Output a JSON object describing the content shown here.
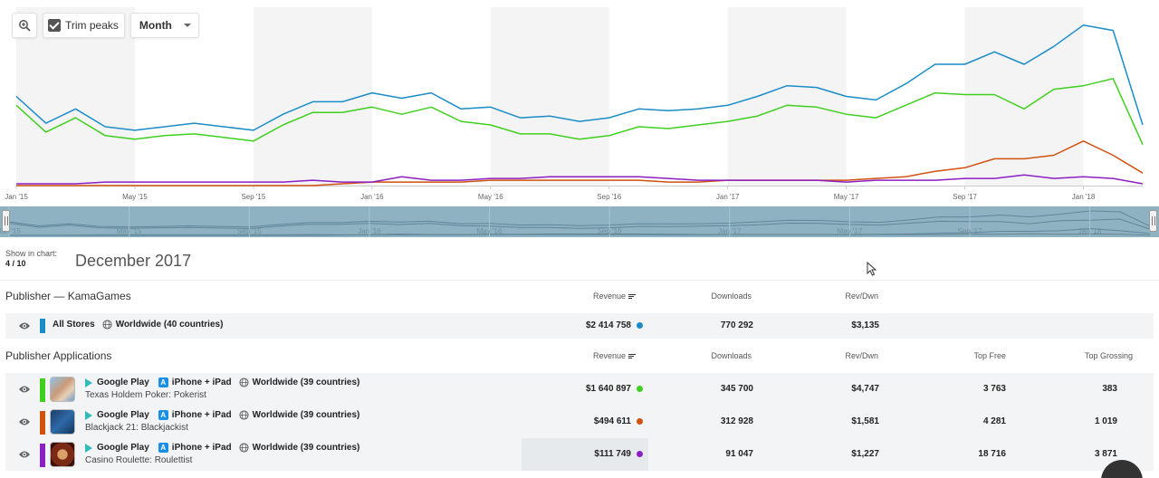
{
  "toolbar": {
    "zoom_icon": "zoom-in-icon",
    "trim_label": "Trim peaks",
    "trim_checked": true,
    "period_select": "Month"
  },
  "chart_data": {
    "type": "line",
    "x": [
      "Jan '15",
      "Feb '15",
      "Mar '15",
      "Apr '15",
      "May '15",
      "Jun '15",
      "Jul '15",
      "Aug '15",
      "Sep '15",
      "Oct '15",
      "Nov '15",
      "Dec '15",
      "Jan '16",
      "Feb '16",
      "Mar '16",
      "Apr '16",
      "May '16",
      "Jun '16",
      "Jul '16",
      "Aug '16",
      "Sep '16",
      "Oct '16",
      "Nov '16",
      "Dec '16",
      "Jan '17",
      "Feb '17",
      "Mar '17",
      "Apr '17",
      "May '17",
      "Jun '17",
      "Jul '17",
      "Aug '17",
      "Sep '17",
      "Oct '17",
      "Nov '17",
      "Dec '17",
      "Jan '18",
      "Feb '18",
      "Mar '18"
    ],
    "x_tick_labels": [
      "Jan '15",
      "May '15",
      "Sep '15",
      "Jan '16",
      "May '16",
      "Sep '16",
      "Jan '17",
      "May '17",
      "Sep '17",
      "Jan '18"
    ],
    "navigator_tick_labels": [
      "Jan '15",
      "May '15",
      "Sep '15",
      "Jan '16",
      "May '16",
      "Sep '16",
      "Jan '17",
      "May '17",
      "Sep '17",
      "Jan '18"
    ],
    "ylim": [
      0,
      100
    ],
    "shaded_bands": [
      [
        "Jan '15",
        "May '15"
      ],
      [
        "Sep '15",
        "Jan '16"
      ],
      [
        "May '16",
        "Sep '16"
      ],
      [
        "Jan '17",
        "May '17"
      ],
      [
        "Sep '17",
        "Jan '18"
      ]
    ],
    "series": [
      {
        "color": "#1a8cc8",
        "values": [
          50,
          35,
          43,
          33,
          31,
          33,
          35,
          33,
          31,
          40,
          47,
          47,
          52,
          49,
          52,
          43,
          44,
          38,
          39,
          36,
          38,
          43,
          42,
          43,
          45,
          50,
          56,
          55,
          50,
          48,
          57,
          68,
          68,
          75,
          68,
          78,
          90,
          87,
          34
        ]
      },
      {
        "color": "#3fcf1f",
        "values": [
          45,
          30,
          38,
          28,
          26,
          28,
          29,
          27,
          25,
          34,
          41,
          41,
          44,
          40,
          44,
          36,
          34,
          29,
          29,
          26,
          28,
          33,
          32,
          34,
          36,
          39,
          45,
          44,
          40,
          38,
          45,
          52,
          51,
          51,
          43,
          54,
          56,
          60,
          23
        ]
      },
      {
        "color": "#d1510f",
        "values": [
          0,
          0,
          0,
          0,
          0,
          0,
          0,
          0,
          0,
          0,
          0,
          1,
          2,
          2,
          2,
          2,
          3,
          3,
          3,
          3,
          3,
          3,
          2,
          2,
          3,
          3,
          3,
          3,
          3,
          4,
          5,
          8,
          10,
          15,
          15,
          17,
          25,
          17,
          7
        ]
      },
      {
        "color": "#8b1fc2",
        "values": [
          1,
          1,
          1,
          2,
          2,
          2,
          2,
          2,
          2,
          2,
          3,
          2,
          2,
          5,
          3,
          3,
          4,
          4,
          5,
          5,
          5,
          5,
          4,
          3,
          3,
          3,
          3,
          3,
          2,
          3,
          3,
          3,
          4,
          4,
          6,
          4,
          5,
          4,
          1
        ]
      }
    ]
  },
  "summary": {
    "show_in_chart_label": "Show in chart:",
    "show_in_chart_count": "4 / 10",
    "period": "December 2017"
  },
  "publisher": {
    "title": "Publisher — KamaGames",
    "columns": {
      "revenue": "Revenue",
      "downloads": "Downloads",
      "rev_dwn": "Rev/Dwn"
    },
    "row": {
      "color": "#1a8cc8",
      "store": "All Stores",
      "region": "Worldwide (40 countries)",
      "revenue": "$2 414 758",
      "downloads": "770 292",
      "rev_dwn": "$3,135"
    }
  },
  "applications": {
    "title": "Publisher Applications",
    "columns": {
      "revenue": "Revenue",
      "downloads": "Downloads",
      "rev_dwn": "Rev/Dwn",
      "top_free": "Top Free",
      "top_grossing": "Top Grossing"
    },
    "rows": [
      {
        "color": "#3fcf1f",
        "store1": "Google Play",
        "store2": "iPhone + iPad",
        "region": "Worldwide (39 countries)",
        "name": "Texas Holdem Poker: Pokerist",
        "revenue": "$1 640 897",
        "downloads": "345 700",
        "rev_dwn": "$4,747",
        "top_free": "3 763",
        "top_grossing": "383",
        "icon": "poker-app-icon"
      },
      {
        "color": "#d1510f",
        "store1": "Google Play",
        "store2": "iPhone + iPad",
        "region": "Worldwide (39 countries)",
        "name": "Blackjack 21: Blackjackist",
        "revenue": "$494 611",
        "downloads": "312 928",
        "rev_dwn": "$1,581",
        "top_free": "4 281",
        "top_grossing": "1 019",
        "icon": "blackjack-app-icon"
      },
      {
        "color": "#8b1fc2",
        "store1": "Google Play",
        "store2": "iPhone + iPad",
        "region": "Worldwide (39 countries)",
        "name": "Casino Roulette: Roulettist",
        "revenue": "$111 749",
        "downloads": "91 047",
        "rev_dwn": "$1,227",
        "top_free": "18 716",
        "top_grossing": "3 871",
        "icon": "roulette-app-icon"
      }
    ]
  }
}
